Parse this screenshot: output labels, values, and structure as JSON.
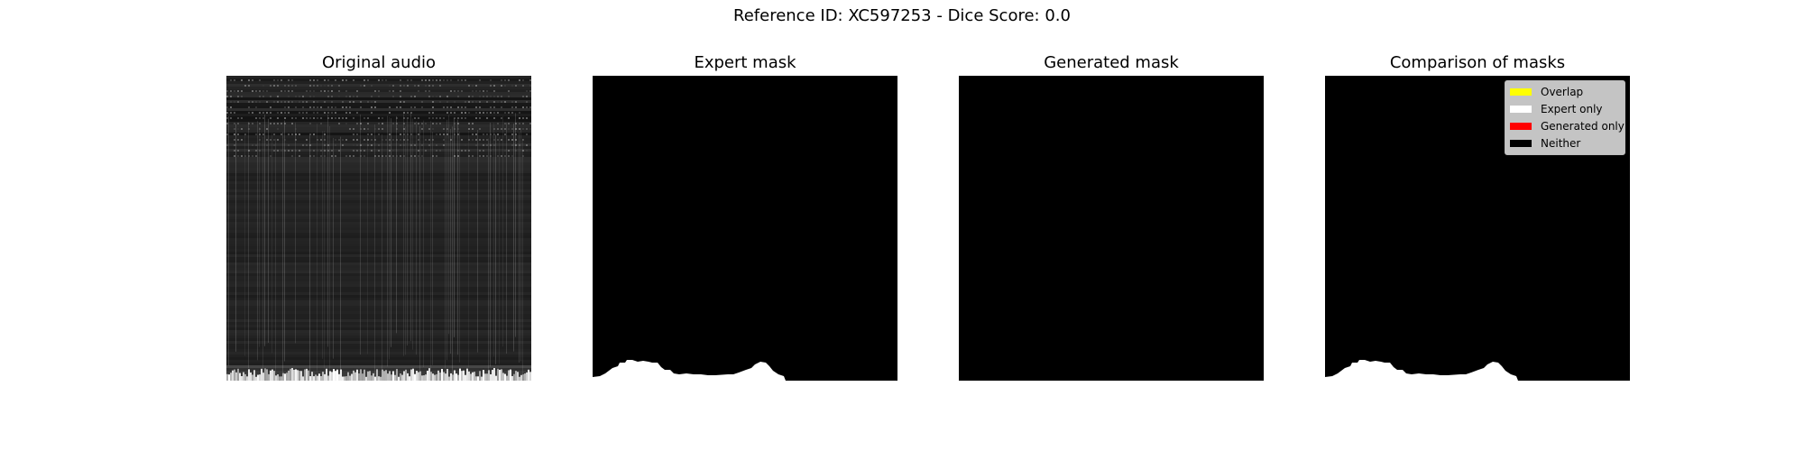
{
  "figure": {
    "suptitle": "Reference ID: XC597253 - Dice Score: 0.0"
  },
  "panels": [
    {
      "title": "Original audio"
    },
    {
      "title": "Expert mask"
    },
    {
      "title": "Generated mask"
    },
    {
      "title": "Comparison of masks"
    }
  ],
  "legend": {
    "items": [
      {
        "label": "Overlap",
        "color": "#ffff00"
      },
      {
        "label": "Expert only",
        "color": "#ffffff"
      },
      {
        "label": "Generated only",
        "color": "#ff0000"
      },
      {
        "label": "Neither",
        "color": "#000000"
      }
    ]
  },
  "colors": {
    "background": "#000000",
    "mask_foreground": "#ffffff"
  }
}
